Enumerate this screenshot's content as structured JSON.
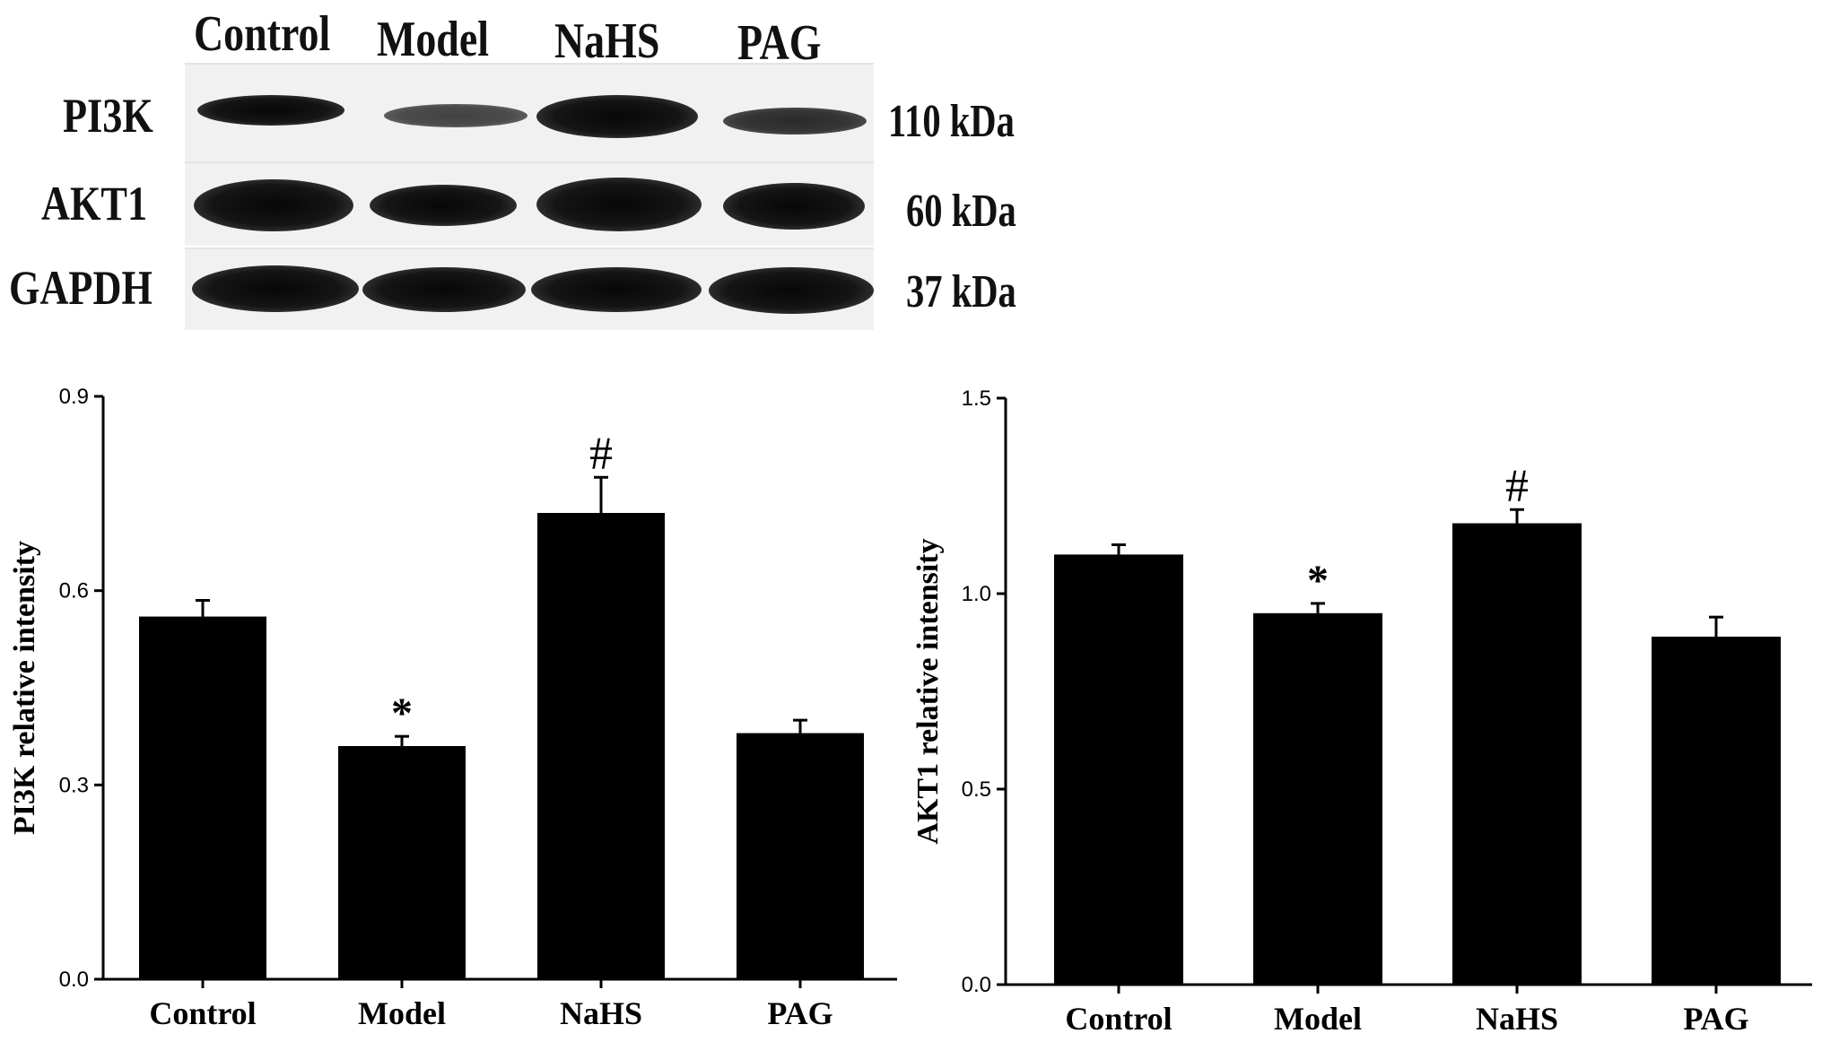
{
  "blot": {
    "lanes": [
      "Control",
      "Model",
      "NaHS",
      "PAG"
    ],
    "proteins": [
      {
        "name": "PI3K",
        "kda": "110 kDa"
      },
      {
        "name": "AKT1",
        "kda": "60 kDa"
      },
      {
        "name": "GAPDH",
        "kda": "37 kDa"
      }
    ]
  },
  "chart_data": [
    {
      "type": "bar",
      "categories": [
        "Control",
        "Model",
        "NaHS",
        "PAG"
      ],
      "values": [
        0.56,
        0.36,
        0.72,
        0.38
      ],
      "errors": [
        0.025,
        0.015,
        0.055,
        0.02
      ],
      "annotations": [
        "",
        "*",
        "#",
        ""
      ],
      "ylabel": "PI3K relative intensity",
      "xlabel": "",
      "ylim": [
        0,
        0.9
      ],
      "yticks": [
        "0.0",
        "0.3",
        "0.6",
        "0.9"
      ],
      "bar_color": "#000000",
      "grid": false
    },
    {
      "type": "bar",
      "categories": [
        "Control",
        "Model",
        "NaHS",
        "PAG"
      ],
      "values": [
        1.1,
        0.95,
        1.18,
        0.89
      ],
      "errors": [
        0.025,
        0.025,
        0.035,
        0.05
      ],
      "annotations": [
        "",
        "*",
        "#",
        ""
      ],
      "ylabel": "AKT1 relative intensity",
      "xlabel": "",
      "ylim": [
        0,
        1.5
      ],
      "yticks": [
        "0.0",
        "0.5",
        "1.0",
        "1.5"
      ],
      "bar_color": "#000000",
      "grid": false
    }
  ]
}
